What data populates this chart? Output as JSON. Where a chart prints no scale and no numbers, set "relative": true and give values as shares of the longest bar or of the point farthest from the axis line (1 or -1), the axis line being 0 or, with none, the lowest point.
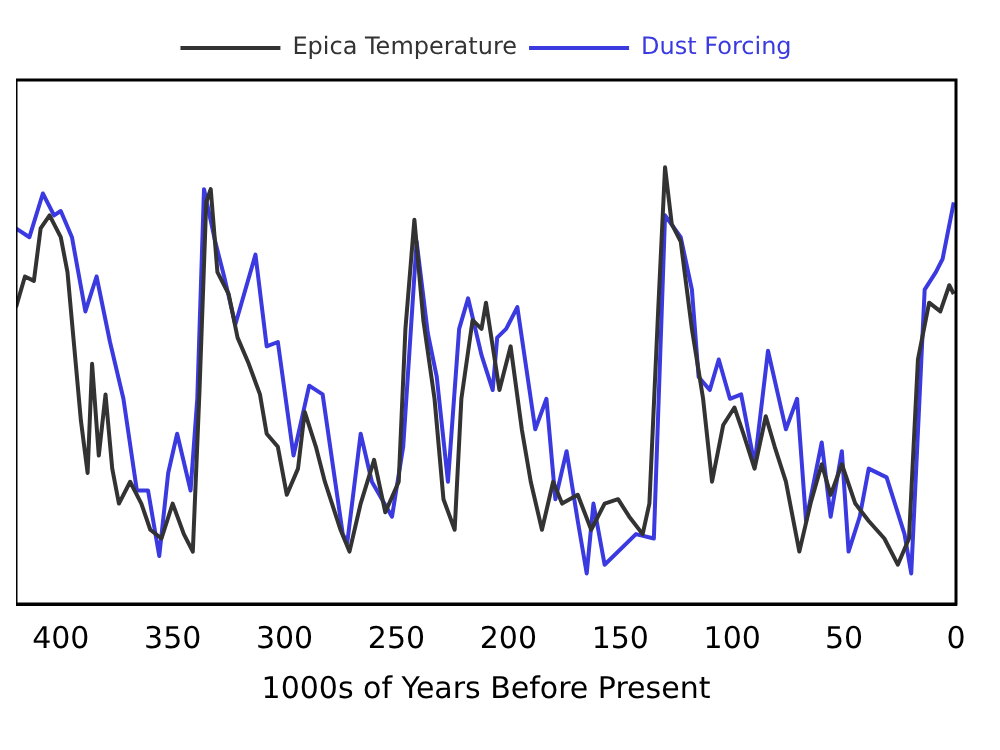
{
  "chart_data": {
    "type": "line",
    "xlabel": "1000s of Years Before Present",
    "relative": true,
    "xlim": [
      420,
      0
    ],
    "xticks": [
      400,
      350,
      300,
      250,
      200,
      150,
      100,
      50,
      0
    ],
    "grid": false,
    "legend": "top",
    "marker": "none",
    "line_style": "solid",
    "series": [
      {
        "name": "Epica Temperature",
        "color": "#333333",
        "x": [
          420,
          416,
          412,
          409,
          405,
          400,
          397,
          394,
          391,
          388,
          386,
          383,
          380,
          377,
          374,
          369,
          364,
          360,
          355,
          350,
          345,
          341,
          338,
          335,
          333,
          330,
          325,
          321,
          316,
          311,
          308,
          303,
          299,
          294,
          291,
          286,
          282,
          275,
          271,
          266,
          260,
          255,
          249,
          246,
          242,
          238,
          233,
          229,
          224,
          221,
          216,
          212,
          210,
          204,
          199,
          194,
          190,
          185,
          180,
          176,
          169,
          163,
          157,
          151,
          146,
          140,
          137,
          133,
          130,
          127,
          123,
          118,
          113,
          109,
          104,
          99,
          95,
          90,
          85,
          81,
          76,
          70,
          65,
          60,
          56,
          51,
          45,
          39,
          32,
          26,
          21,
          17,
          12,
          7,
          3,
          1
        ],
        "values": [
          0.68,
          0.75,
          0.74,
          0.86,
          0.89,
          0.84,
          0.76,
          0.59,
          0.42,
          0.3,
          0.55,
          0.34,
          0.48,
          0.31,
          0.23,
          0.28,
          0.23,
          0.17,
          0.15,
          0.23,
          0.16,
          0.12,
          0.49,
          0.92,
          0.95,
          0.76,
          0.71,
          0.61,
          0.55,
          0.48,
          0.39,
          0.36,
          0.25,
          0.31,
          0.44,
          0.36,
          0.28,
          0.17,
          0.12,
          0.23,
          0.33,
          0.21,
          0.28,
          0.63,
          0.88,
          0.65,
          0.47,
          0.24,
          0.17,
          0.47,
          0.65,
          0.63,
          0.69,
          0.49,
          0.59,
          0.4,
          0.28,
          0.17,
          0.28,
          0.23,
          0.25,
          0.17,
          0.23,
          0.24,
          0.2,
          0.16,
          0.23,
          0.68,
          1,
          0.87,
          0.83,
          0.63,
          0.47,
          0.28,
          0.41,
          0.45,
          0.39,
          0.31,
          0.43,
          0.36,
          0.28,
          0.12,
          0.23,
          0.32,
          0.25,
          0.32,
          0.23,
          0.19,
          0.15,
          0.09,
          0.15,
          0.56,
          0.69,
          0.67,
          0.73,
          0.71
        ]
      },
      {
        "name": "Dust Forcing",
        "color": "#3a3ae0",
        "x": [
          420,
          414,
          408,
          403,
          400,
          395,
          389,
          384,
          378,
          372,
          366,
          361,
          356,
          352,
          348,
          342,
          339,
          336,
          331,
          327,
          322,
          313,
          308,
          303,
          296,
          289,
          283,
          274,
          272,
          266,
          261,
          252,
          247,
          241,
          236,
          232,
          227,
          222,
          218,
          212,
          207,
          205,
          201,
          196,
          188,
          183,
          179,
          174,
          169,
          165,
          162,
          157,
          143,
          135,
          130,
          123,
          118,
          115,
          110,
          106,
          101,
          96,
          90,
          84,
          76,
          71,
          67,
          60,
          56,
          51,
          48,
          43,
          39,
          31,
          23,
          20,
          14,
          9,
          6,
          1
        ],
        "values": [
          0.86,
          0.84,
          0.94,
          0.89,
          0.9,
          0.84,
          0.67,
          0.75,
          0.6,
          0.47,
          0.26,
          0.26,
          0.11,
          0.3,
          0.39,
          0.26,
          0.47,
          0.95,
          0.83,
          0.75,
          0.64,
          0.8,
          0.59,
          0.6,
          0.34,
          0.5,
          0.48,
          0.16,
          0.14,
          0.39,
          0.28,
          0.2,
          0.36,
          0.83,
          0.62,
          0.52,
          0.28,
          0.63,
          0.7,
          0.57,
          0.49,
          0.61,
          0.63,
          0.68,
          0.4,
          0.47,
          0.24,
          0.35,
          0.19,
          0.07,
          0.23,
          0.09,
          0.16,
          0.15,
          0.89,
          0.84,
          0.72,
          0.52,
          0.49,
          0.56,
          0.47,
          0.48,
          0.32,
          0.58,
          0.4,
          0.47,
          0.19,
          0.37,
          0.2,
          0.35,
          0.12,
          0.2,
          0.31,
          0.29,
          0.16,
          0.07,
          0.72,
          0.76,
          0.79,
          0.92
        ]
      }
    ]
  }
}
